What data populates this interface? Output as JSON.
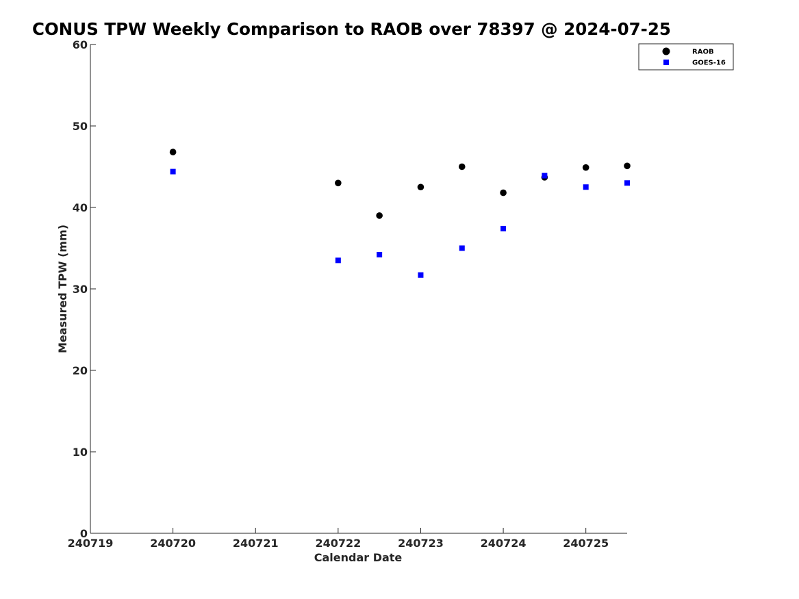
{
  "chart_data": {
    "type": "scatter",
    "title": "CONUS TPW Weekly Comparison to RAOB over 78397 @ 2024-07-25",
    "xlabel": "Calendar Date",
    "ylabel": "Measured TPW (mm)",
    "xlim": [
      240719,
      240725.5
    ],
    "ylim": [
      0,
      60
    ],
    "x_ticks": [
      240719,
      240720,
      240721,
      240722,
      240723,
      240724,
      240725
    ],
    "x_tick_labels": [
      "240719",
      "240720",
      "240721",
      "240722",
      "240723",
      "240724",
      "240725"
    ],
    "y_ticks": [
      0,
      10,
      20,
      30,
      40,
      50,
      60
    ],
    "y_tick_labels": [
      "0",
      "10",
      "20",
      "30",
      "40",
      "50",
      "60"
    ],
    "grid": false,
    "legend_position": "top-right",
    "series": [
      {
        "name": "RAOB",
        "marker": "circle",
        "color": "#000000",
        "x": [
          240720,
          240722,
          240722.5,
          240723,
          240723.5,
          240724,
          240724.5,
          240725,
          240725.5
        ],
        "y": [
          46.8,
          43.0,
          39.0,
          42.5,
          45.0,
          41.8,
          43.7,
          44.9,
          45.1
        ]
      },
      {
        "name": "GOES-16",
        "marker": "square",
        "color": "#0000ff",
        "x": [
          240720,
          240722,
          240722.5,
          240723,
          240723.5,
          240724,
          240724.5,
          240725,
          240725.5
        ],
        "y": [
          44.4,
          33.5,
          34.2,
          31.7,
          35.0,
          37.4,
          43.9,
          42.5,
          43.0
        ]
      }
    ]
  }
}
